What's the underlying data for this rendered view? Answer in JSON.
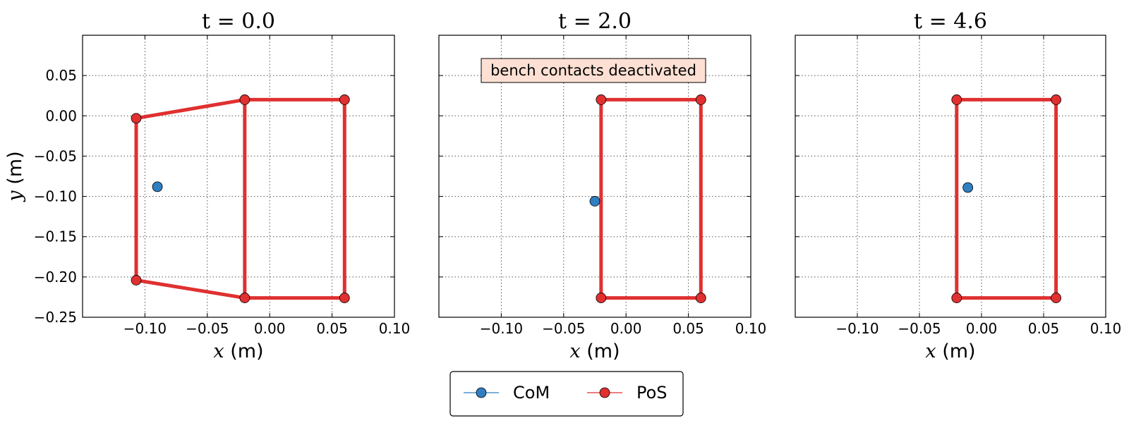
{
  "colors": {
    "com": "#2f7fc1",
    "pos": "#e03030",
    "annotation_bg": "#fde0d3",
    "grid": "#555555"
  },
  "legend": {
    "com_label": "CoM",
    "pos_label": "PoS",
    "placement": "lower-center"
  },
  "chart_data": [
    {
      "type": "scatter",
      "title": "t = 0.0",
      "xlabel": "x (m)",
      "ylabel": "y (m)",
      "xlim": [
        -0.15,
        0.1
      ],
      "ylim": [
        -0.25,
        0.1
      ],
      "x_ticks": [
        -0.1,
        -0.05,
        0.0,
        0.05,
        0.1
      ],
      "x_tick_labels": [
        "−0.10",
        "−0.05",
        "0.00",
        "0.05",
        "0.10"
      ],
      "y_ticks": [
        0.05,
        0.0,
        -0.05,
        -0.1,
        -0.15,
        -0.2,
        -0.25
      ],
      "y_tick_labels": [
        "0.05",
        "0.00",
        "−0.05",
        "−0.10",
        "−0.15",
        "−0.20",
        "−0.25"
      ],
      "grid": true,
      "annotation": "",
      "series": [
        {
          "name": "CoM",
          "points": [
            [
              -0.09,
              -0.088
            ]
          ]
        },
        {
          "name": "PoS",
          "polygons": [
            [
              [
                -0.107,
                -0.003
              ],
              [
                -0.02,
                0.02
              ],
              [
                0.06,
                0.02
              ],
              [
                0.06,
                -0.226
              ],
              [
                -0.02,
                -0.226
              ],
              [
                -0.107,
                -0.204
              ]
            ],
            [
              [
                -0.02,
                0.02
              ],
              [
                -0.02,
                -0.226
              ]
            ]
          ]
        }
      ]
    },
    {
      "type": "scatter",
      "title": "t = 2.0",
      "xlabel": "x (m)",
      "ylabel": "",
      "xlim": [
        -0.15,
        0.1
      ],
      "ylim": [
        -0.25,
        0.1
      ],
      "x_ticks": [
        -0.1,
        -0.05,
        0.0,
        0.05,
        0.1
      ],
      "x_tick_labels": [
        "−0.10",
        "−0.05",
        "0.00",
        "0.05",
        "0.10"
      ],
      "y_ticks": [],
      "y_tick_labels": [],
      "grid": true,
      "annotation": "bench contacts deactivated",
      "series": [
        {
          "name": "CoM",
          "points": [
            [
              -0.025,
              -0.106
            ]
          ]
        },
        {
          "name": "PoS",
          "polygons": [
            [
              [
                -0.02,
                0.02
              ],
              [
                0.06,
                0.02
              ],
              [
                0.06,
                -0.226
              ],
              [
                -0.02,
                -0.226
              ]
            ]
          ]
        }
      ]
    },
    {
      "type": "scatter",
      "title": "t = 4.6",
      "xlabel": "x (m)",
      "ylabel": "",
      "xlim": [
        -0.15,
        0.1
      ],
      "ylim": [
        -0.25,
        0.1
      ],
      "x_ticks": [
        -0.1,
        -0.05,
        0.0,
        0.05,
        0.1
      ],
      "x_tick_labels": [
        "−0.10",
        "−0.05",
        "0.00",
        "0.05",
        "0.10"
      ],
      "y_ticks": [],
      "y_tick_labels": [],
      "grid": true,
      "annotation": "",
      "series": [
        {
          "name": "CoM",
          "points": [
            [
              -0.011,
              -0.089
            ]
          ]
        },
        {
          "name": "PoS",
          "polygons": [
            [
              [
                -0.02,
                0.02
              ],
              [
                0.06,
                0.02
              ],
              [
                0.06,
                -0.226
              ],
              [
                -0.02,
                -0.226
              ]
            ]
          ]
        }
      ]
    }
  ]
}
